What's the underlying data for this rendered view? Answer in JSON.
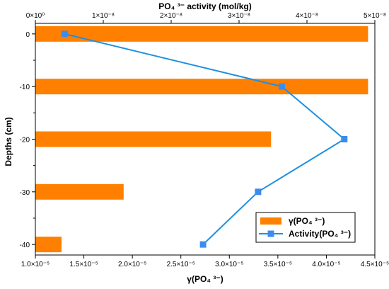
{
  "chart_data": {
    "type": "bar",
    "orientation": "horizontal",
    "title": "",
    "grid": false,
    "legend_position": "bottom-right",
    "y_axis": {
      "label": "Depths (cm)",
      "range": [
        -42,
        2
      ],
      "ticks": [
        0,
        -10,
        -20,
        -30,
        -40
      ],
      "tick_labels": [
        "0",
        "-10",
        "-20",
        "-30",
        "-40"
      ]
    },
    "x_axis_bottom": {
      "label": "γ(PO₄ ³⁻)",
      "range": [
        1e-05,
        4.5e-05
      ],
      "ticks": [
        1e-05,
        1.5e-05,
        2e-05,
        2.5e-05,
        3e-05,
        3.5e-05,
        4e-05,
        4.5e-05
      ],
      "tick_labels": [
        "1.0×10⁻⁵",
        "1.5×10⁻⁵",
        "2.0×10⁻⁵",
        "2.5×10⁻⁵",
        "3.0×10⁻⁵",
        "3.5×10⁻⁵",
        "4.0×10⁻⁵",
        "4.5×10⁻⁵"
      ]
    },
    "x_axis_top": {
      "label": "PO₄ ³⁻ activity (mol/kg)",
      "range": [
        0,
        5e-08
      ],
      "ticks": [
        0,
        1e-08,
        2e-08,
        3e-08,
        4e-08,
        5e-08
      ],
      "tick_labels": [
        "0×10⁰",
        "1×10⁻⁸",
        "2×10⁻⁸",
        "3×10⁻⁸",
        "4×10⁻⁸",
        "5×10⁻⁸"
      ]
    },
    "series": [
      {
        "name": "γ(PO₄ ³⁻)",
        "kind": "bar",
        "axis": "bottom",
        "color": "#FF8000",
        "y": [
          0,
          -10,
          -20,
          -30,
          -40
        ],
        "values": [
          4.43e-05,
          4.43e-05,
          3.43e-05,
          1.91e-05,
          1.27e-05
        ]
      },
      {
        "name": "Activity(PO₄ ³⁻)",
        "kind": "line",
        "axis": "top",
        "color": "#1E90E0",
        "y": [
          0,
          -10,
          -20,
          -30,
          -40
        ],
        "values": [
          4.3e-09,
          3.63e-08,
          4.55e-08,
          3.28e-08,
          2.47e-08
        ]
      }
    ]
  }
}
